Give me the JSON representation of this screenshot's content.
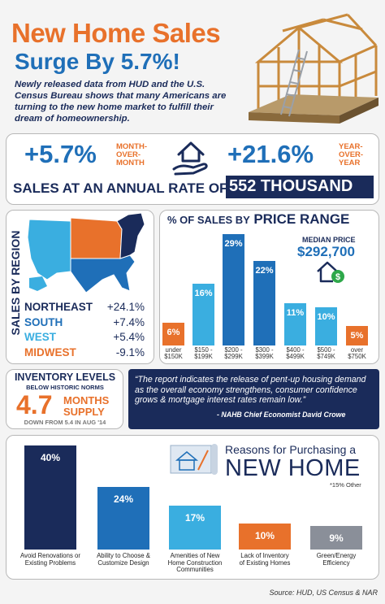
{
  "header": {
    "title_line1": "New Home Sales",
    "title_line2": "Surge By 5.7%!",
    "intro": "Newly released data from HUD and the U.S. Census Bureau shows that many Americans are turning to the new home market to fulfill their dream of homeownership."
  },
  "stats": {
    "mom_value": "+5.7%",
    "mom_label_1": "MONTH-",
    "mom_label_2": "OVER-",
    "mom_label_3": "MONTH",
    "yoy_value": "+21.6%",
    "yoy_label_1": "YEAR-",
    "yoy_label_2": "OVER-",
    "yoy_label_3": "YEAR",
    "annual_rate_label": "SALES AT AN ANNUAL RATE OF",
    "annual_rate_value": "552 THOUSAND"
  },
  "region": {
    "side_label": "SALES BY REGION",
    "rows": [
      {
        "name": "NORTHEAST",
        "value": "+24.1%",
        "color": "#1a2b5a"
      },
      {
        "name": "SOUTH",
        "value": "+7.4%",
        "color": "#1f6fb8"
      },
      {
        "name": "WEST",
        "value": "+5.4%",
        "color": "#3aaee0"
      },
      {
        "name": "MIDWEST",
        "value": "-9.1%",
        "color": "#e8712b"
      }
    ]
  },
  "price": {
    "title_small": "% OF SALES BY",
    "title_big": "PRICE RANGE",
    "median_label": "MEDIAN PRICE",
    "median_value": "$292,700"
  },
  "chart_data": [
    {
      "type": "bar",
      "title": "% OF SALES BY PRICE RANGE",
      "categories": [
        "under $150K",
        "$150 - $199K",
        "$200 - $299K",
        "$300 - $399K",
        "$400 - $499K",
        "$500 - $749K",
        "over $750K"
      ],
      "tick_lines": [
        [
          "under",
          "$150K"
        ],
        [
          "$150 -",
          "$199K"
        ],
        [
          "$200 -",
          "$299K"
        ],
        [
          "$300 -",
          "$399K"
        ],
        [
          "$400 -",
          "$499K"
        ],
        [
          "$500 -",
          "$749K"
        ],
        [
          "over",
          "$750K"
        ]
      ],
      "values": [
        6,
        16,
        29,
        22,
        11,
        10,
        5
      ],
      "value_labels": [
        "6%",
        "16%",
        "29%",
        "22%",
        "11%",
        "10%",
        "5%"
      ],
      "colors": [
        "#e8712b",
        "#3aaee0",
        "#1f6fb8",
        "#1f6fb8",
        "#3aaee0",
        "#3aaee0",
        "#e8712b"
      ],
      "ylim": [
        0,
        30
      ]
    },
    {
      "type": "bar",
      "title": "Reasons for Purchasing a NEW HOME",
      "categories": [
        "Avoid Renovations or Existing Problems",
        "Ability to Choose & Customize Design",
        "Amenities of New Home Construction Communities",
        "Lack of Inventory of Existing Homes",
        "Green/Energy Efficiency"
      ],
      "tick_lines": [
        [
          "Avoid Renovations or",
          "Existing Problems"
        ],
        [
          "Ability to Choose &",
          "Customize Design"
        ],
        [
          "Amenities of New",
          "Home Construction",
          "Communities"
        ],
        [
          "Lack of Inventory",
          "of Existing Homes"
        ],
        [
          "Green/Energy",
          "Efficiency"
        ]
      ],
      "values": [
        40,
        24,
        17,
        10,
        9
      ],
      "value_labels": [
        "40%",
        "24%",
        "17%",
        "10%",
        "9%"
      ],
      "colors": [
        "#1a2b5a",
        "#1f6fb8",
        "#3aaee0",
        "#e8712b",
        "#8a8f99"
      ],
      "ylim": [
        0,
        40
      ]
    }
  ],
  "inventory": {
    "title": "INVENTORY LEVELS",
    "subtitle": "BELOW HISTORIC NORMS",
    "value": "4.7",
    "unit_1": "MONTHS",
    "unit_2": "SUPPLY",
    "footnote": "DOWN FROM 5.4 IN AUG '14"
  },
  "quote": {
    "text": "“The report indicates the release of pent-up housing demand as the overall economy strengthens, consumer confidence grows & mortgage interest rates remain low.”",
    "attribution": "- NAHB Chief Economist David Crowe"
  },
  "reasons": {
    "title_small": "Reasons for Purchasing a",
    "title_big": "NEW HOME",
    "other_note": "*15% Other"
  },
  "source": "Source: HUD, US Census & NAR"
}
